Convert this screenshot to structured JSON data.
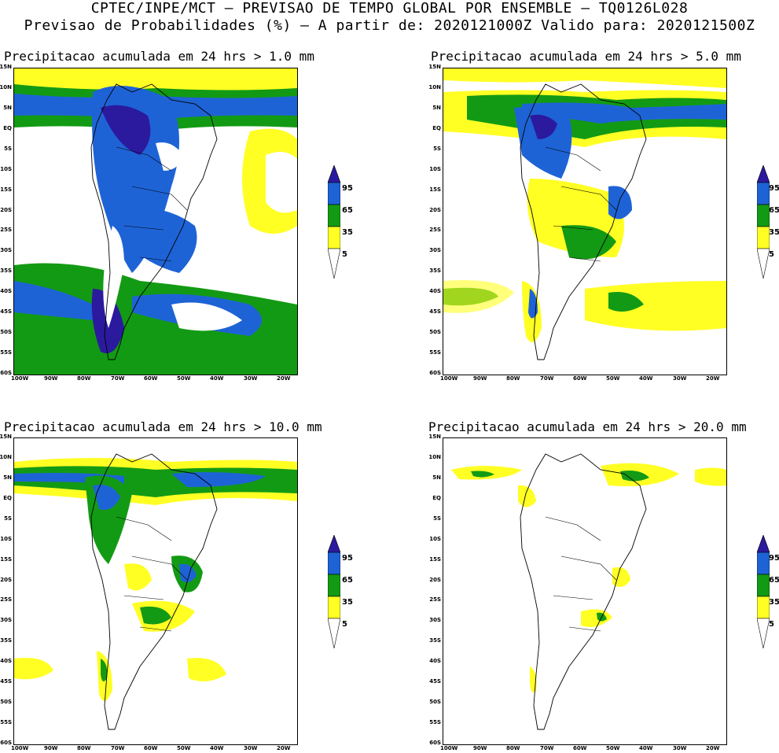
{
  "header": {
    "line1": "CPTEC/INPE/MCT — PREVISAO DE TEMPO GLOBAL POR ENSEMBLE — TQ0126L028",
    "line2": "Previsao de Probabilidades (%) —  A partir de: 2020121000Z  Valido para: 2020121500Z"
  },
  "panels": [
    {
      "title": "Precipitacao acumulada em 24 hrs > 1.0 mm"
    },
    {
      "title": "Precipitacao acumulada em 24 hrs > 5.0 mm"
    },
    {
      "title": "Precipitacao acumulada em 24 hrs > 10.0 mm"
    },
    {
      "title": "Precipitacao acumulada em 24 hrs > 20.0 mm"
    }
  ],
  "axes": {
    "lat_labels": [
      "15N",
      "10N",
      "5N",
      "EQ",
      "5S",
      "10S",
      "15S",
      "20S",
      "25S",
      "30S",
      "35S",
      "40S",
      "45S",
      "50S",
      "55S",
      "60S"
    ],
    "lon_labels": [
      "100W",
      "90W",
      "80W",
      "70W",
      "60W",
      "50W",
      "40W",
      "30W",
      "20W"
    ]
  },
  "legend": {
    "labels": [
      "95",
      "65",
      "35",
      "5"
    ],
    "colors": {
      "c95": "#2b1a9e",
      "c65": "#1e63d6",
      "c35": "#139a14",
      "c5": "#ffff24"
    }
  }
}
